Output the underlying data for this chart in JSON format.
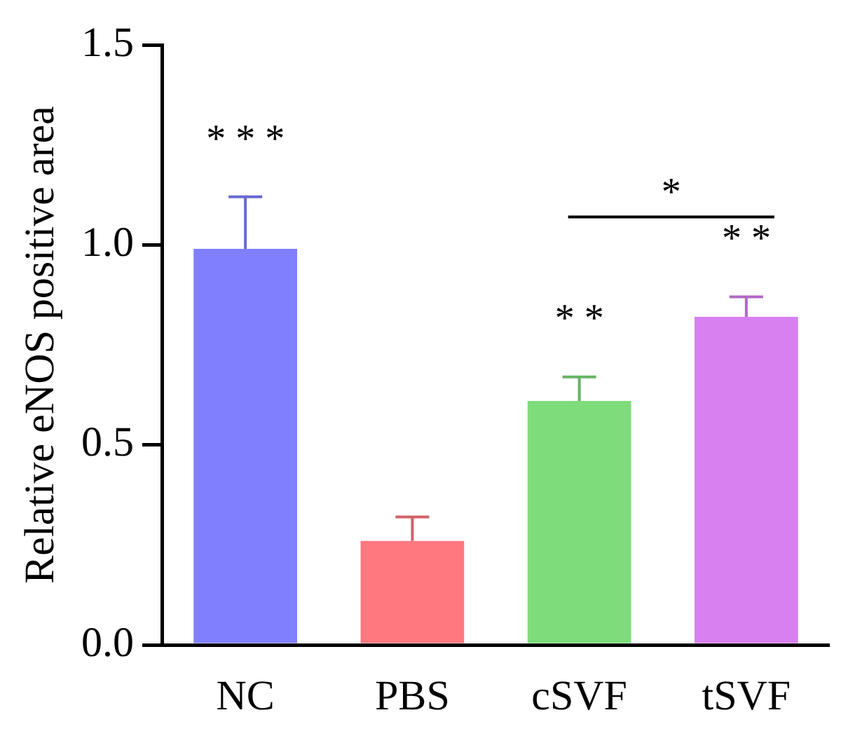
{
  "chart_data": {
    "type": "bar",
    "ylabel": "Relative eNOS positive area",
    "categories": [
      "NC",
      "PBS",
      "cSVF",
      "tSVF"
    ],
    "values": [
      0.99,
      0.26,
      0.61,
      0.82
    ],
    "errors": [
      [
        0.99,
        1.12
      ],
      [
        0.26,
        0.32
      ],
      [
        0.61,
        0.67
      ],
      [
        0.82,
        0.87
      ]
    ],
    "colors": [
      "#8080ff",
      "#ff7880",
      "#7edc7a",
      "#d880f0"
    ],
    "ylim": [
      0,
      1.5
    ],
    "yticks": [
      {
        "value": 0,
        "label": "0.0"
      },
      {
        "value": 0.5,
        "label": "0.5"
      },
      {
        "value": 1,
        "label": "1.0"
      },
      {
        "value": 1.5,
        "label": "1.5"
      }
    ],
    "grid": false,
    "legend": false,
    "annotations": [
      "* * *",
      "* *",
      "* *",
      "*"
    ]
  }
}
